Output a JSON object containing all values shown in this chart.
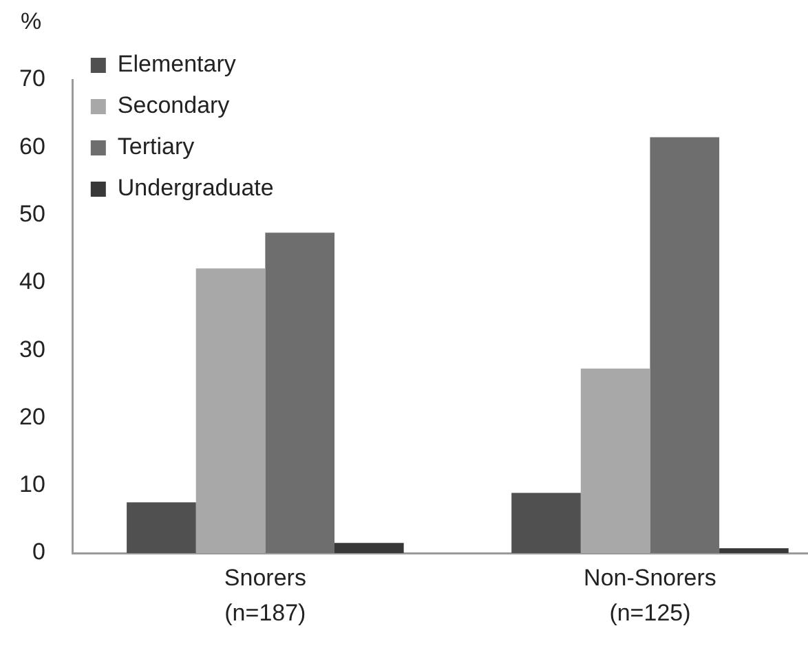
{
  "chart_data": {
    "type": "bar",
    "ylabel": "%",
    "categories": [
      "Snorers\n(n=187)",
      "Non-Snorers\n(n=125)"
    ],
    "series": [
      {
        "name": "Elementary",
        "color": "#505050",
        "values": [
          7.5,
          8.9
        ]
      },
      {
        "name": "Secondary",
        "color": "#a8a8a8",
        "values": [
          42.1,
          27.3
        ]
      },
      {
        "name": "Tertiary",
        "color": "#6e6e6e",
        "values": [
          47.4,
          61.5
        ]
      },
      {
        "name": "Undergraduate",
        "color": "#383838",
        "values": [
          1.5,
          0.7
        ]
      }
    ],
    "ylim": [
      0,
      70
    ],
    "yticks": [
      0,
      10,
      20,
      30,
      40,
      50,
      60,
      70
    ],
    "legend": "top left"
  }
}
